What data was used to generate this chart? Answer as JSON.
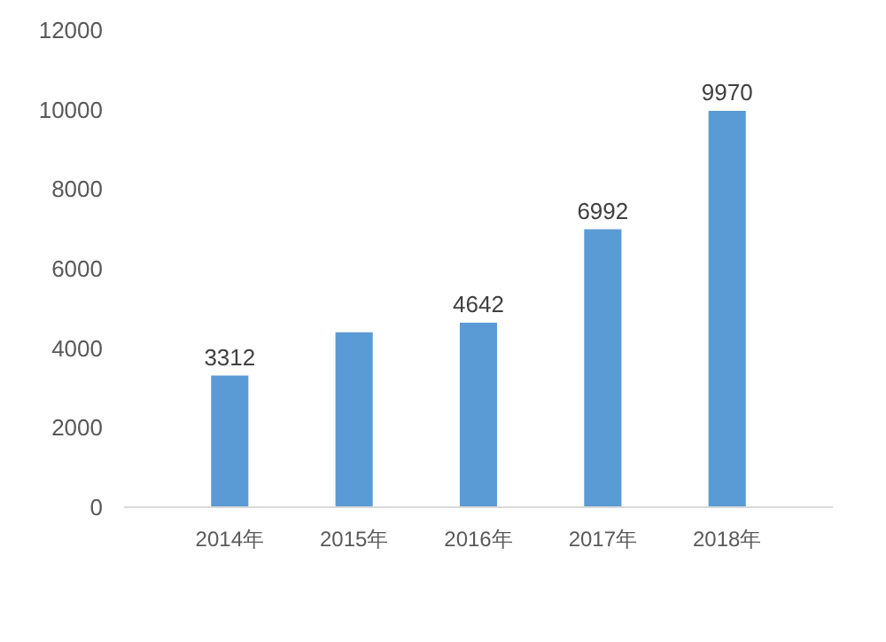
{
  "chart_data": {
    "type": "bar",
    "categories": [
      "2014年",
      "2015年",
      "2016年",
      "2017年",
      "2018年"
    ],
    "values": [
      3312,
      4400,
      4642,
      6992,
      9970
    ],
    "value_labels": [
      "3312",
      null,
      "4642",
      "6992",
      "9970"
    ],
    "color": "#5b9bd5",
    "ylim": [
      0,
      12000
    ],
    "yticks": [
      0,
      2000,
      4000,
      6000,
      8000,
      10000,
      12000
    ],
    "grid": false
  }
}
